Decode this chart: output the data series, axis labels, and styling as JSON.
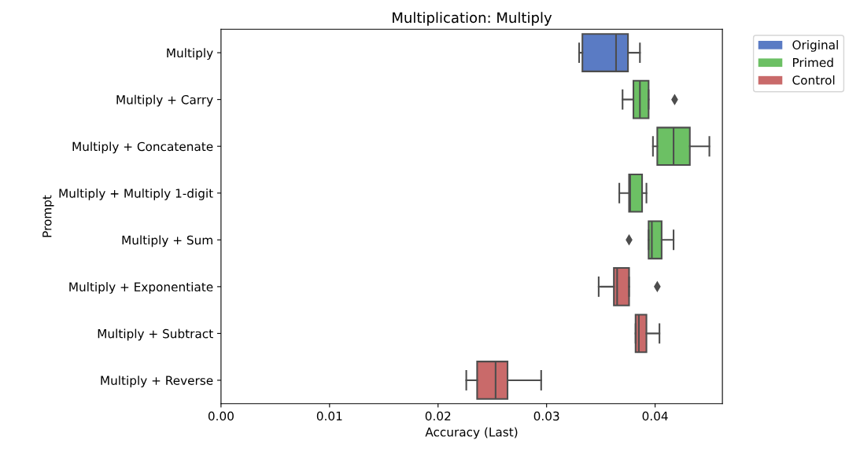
{
  "chart_data": {
    "type": "box",
    "title": "Multiplication: Multiply",
    "xlabel": "Accuracy (Last)",
    "ylabel": "Prompt",
    "orientation": "horizontal",
    "categories": [
      "Multiply",
      "Multiply + Carry",
      "Multiply + Concatenate",
      "Multiply + Multiply 1-digit",
      "Multiply + Sum",
      "Multiply + Exponentiate",
      "Multiply + Subtract",
      "Multiply + Reverse"
    ],
    "xlim": [
      0,
      0.0462
    ],
    "xticks": [
      {
        "value": 0,
        "label": "0.00"
      },
      {
        "value": 0.01,
        "label": "0.01"
      },
      {
        "value": 0.02,
        "label": "0.02"
      },
      {
        "value": 0.03,
        "label": "0.03"
      },
      {
        "value": 0.04,
        "label": "0.04"
      }
    ],
    "legend": "top right",
    "marker": "diamond",
    "grid": false,
    "series": [
      {
        "name": "Original",
        "color": "#5a7bc4",
        "boxes": [
          {
            "low": 0.033,
            "q1": 0.0333,
            "median": 0.0364,
            "q3": 0.0375,
            "high": 0.0386
          },
          null,
          null,
          null,
          null,
          null,
          null,
          null
        ]
      },
      {
        "name": "Primed",
        "color": "#6cc064",
        "boxes": [
          null,
          {
            "low": 0.037,
            "q1": 0.038,
            "median": 0.0386,
            "q3": 0.0394,
            "high": 0.0394,
            "outliers": [
              0.0418
            ]
          },
          {
            "low": 0.0398,
            "q1": 0.0402,
            "median": 0.0417,
            "q3": 0.0432,
            "high": 0.045
          },
          {
            "low": 0.0367,
            "q1": 0.0376,
            "median": 0.0377,
            "q3": 0.0388,
            "high": 0.0392
          },
          {
            "low": 0.0394,
            "q1": 0.0394,
            "median": 0.0397,
            "q3": 0.0406,
            "high": 0.0417,
            "outliers": [
              0.0376
            ]
          },
          null,
          null,
          null
        ]
      },
      {
        "name": "Control",
        "color": "#c96a6a",
        "boxes": [
          null,
          null,
          null,
          null,
          null,
          {
            "low": 0.0348,
            "q1": 0.0362,
            "median": 0.0365,
            "q3": 0.0376,
            "high": 0.0376,
            "outliers": [
              0.0402
            ]
          },
          {
            "low": 0.0382,
            "q1": 0.0382,
            "median": 0.0385,
            "q3": 0.0392,
            "high": 0.0404
          },
          {
            "low": 0.0226,
            "q1": 0.0236,
            "median": 0.0253,
            "q3": 0.0264,
            "high": 0.0295
          }
        ]
      }
    ]
  }
}
